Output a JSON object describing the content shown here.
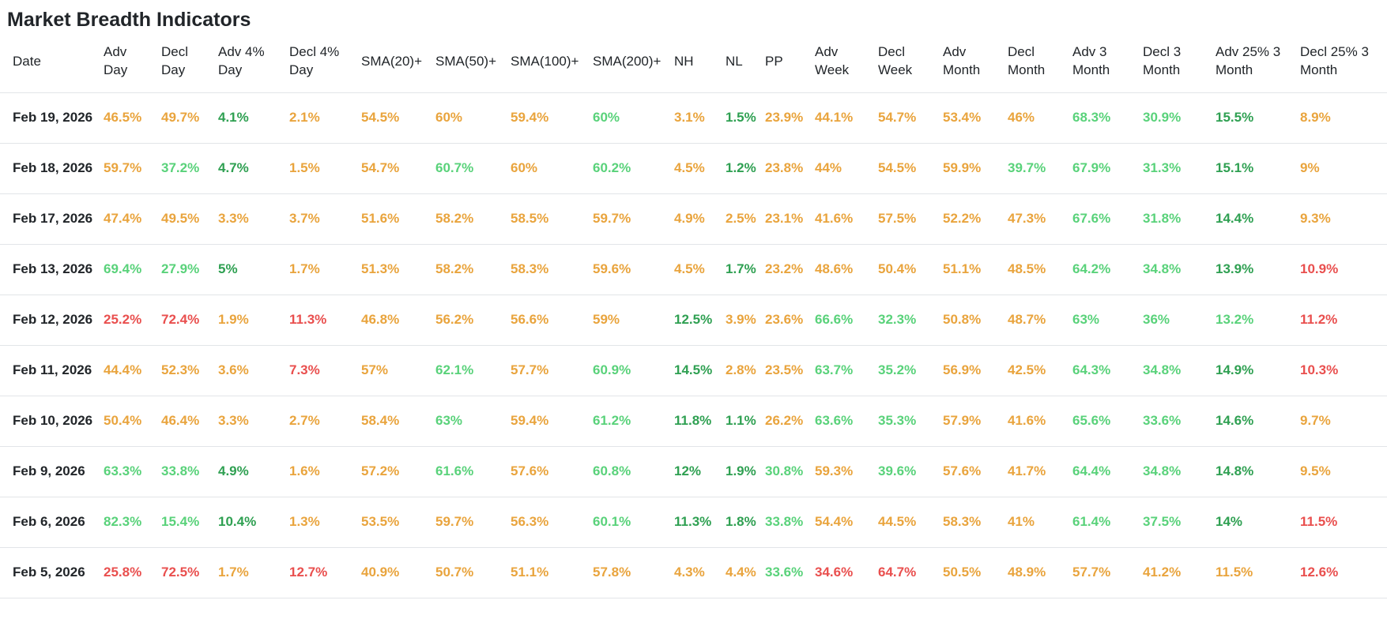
{
  "title": "Market Breadth Indicators",
  "colors": {
    "orange": "#e9a43d",
    "lightgreen": "#59d27a",
    "green": "#2fa052",
    "red": "#e94f4e",
    "text": "#212529",
    "border": "#e2e5e8"
  },
  "table": {
    "columns": [
      "Date",
      "Adv\nDay",
      "Decl\nDay",
      "Adv 4%\nDay",
      "Decl 4%\nDay",
      "SMA(20)+",
      "SMA(50)+",
      "SMA(100)+",
      "SMA(200)+",
      "NH",
      "NL",
      "PP",
      "Adv\nWeek",
      "Decl\nWeek",
      "Adv\nMonth",
      "Decl\nMonth",
      "Adv 3\nMonth",
      "Decl 3\nMonth",
      "Adv 25% 3\nMonth",
      "Decl 25% 3\nMonth"
    ],
    "rows": [
      {
        "date": "Feb 19, 2026",
        "values": [
          [
            "46.5%",
            "o"
          ],
          [
            "49.7%",
            "o"
          ],
          [
            "4.1%",
            "g"
          ],
          [
            "2.1%",
            "o"
          ],
          [
            "54.5%",
            "o"
          ],
          [
            "60%",
            "o"
          ],
          [
            "59.4%",
            "o"
          ],
          [
            "60%",
            "lg"
          ],
          [
            "3.1%",
            "o"
          ],
          [
            "1.5%",
            "g"
          ],
          [
            "23.9%",
            "o"
          ],
          [
            "44.1%",
            "o"
          ],
          [
            "54.7%",
            "o"
          ],
          [
            "53.4%",
            "o"
          ],
          [
            "46%",
            "o"
          ],
          [
            "68.3%",
            "lg"
          ],
          [
            "30.9%",
            "lg"
          ],
          [
            "15.5%",
            "g"
          ],
          [
            "8.9%",
            "o"
          ]
        ]
      },
      {
        "date": "Feb 18, 2026",
        "values": [
          [
            "59.7%",
            "o"
          ],
          [
            "37.2%",
            "lg"
          ],
          [
            "4.7%",
            "g"
          ],
          [
            "1.5%",
            "o"
          ],
          [
            "54.7%",
            "o"
          ],
          [
            "60.7%",
            "lg"
          ],
          [
            "60%",
            "o"
          ],
          [
            "60.2%",
            "lg"
          ],
          [
            "4.5%",
            "o"
          ],
          [
            "1.2%",
            "g"
          ],
          [
            "23.8%",
            "o"
          ],
          [
            "44%",
            "o"
          ],
          [
            "54.5%",
            "o"
          ],
          [
            "59.9%",
            "o"
          ],
          [
            "39.7%",
            "lg"
          ],
          [
            "67.9%",
            "lg"
          ],
          [
            "31.3%",
            "lg"
          ],
          [
            "15.1%",
            "g"
          ],
          [
            "9%",
            "o"
          ]
        ]
      },
      {
        "date": "Feb 17, 2026",
        "values": [
          [
            "47.4%",
            "o"
          ],
          [
            "49.5%",
            "o"
          ],
          [
            "3.3%",
            "o"
          ],
          [
            "3.7%",
            "o"
          ],
          [
            "51.6%",
            "o"
          ],
          [
            "58.2%",
            "o"
          ],
          [
            "58.5%",
            "o"
          ],
          [
            "59.7%",
            "o"
          ],
          [
            "4.9%",
            "o"
          ],
          [
            "2.5%",
            "o"
          ],
          [
            "23.1%",
            "o"
          ],
          [
            "41.6%",
            "o"
          ],
          [
            "57.5%",
            "o"
          ],
          [
            "52.2%",
            "o"
          ],
          [
            "47.3%",
            "o"
          ],
          [
            "67.6%",
            "lg"
          ],
          [
            "31.8%",
            "lg"
          ],
          [
            "14.4%",
            "g"
          ],
          [
            "9.3%",
            "o"
          ]
        ]
      },
      {
        "date": "Feb 13, 2026",
        "values": [
          [
            "69.4%",
            "lg"
          ],
          [
            "27.9%",
            "lg"
          ],
          [
            "5%",
            "g"
          ],
          [
            "1.7%",
            "o"
          ],
          [
            "51.3%",
            "o"
          ],
          [
            "58.2%",
            "o"
          ],
          [
            "58.3%",
            "o"
          ],
          [
            "59.6%",
            "o"
          ],
          [
            "4.5%",
            "o"
          ],
          [
            "1.7%",
            "g"
          ],
          [
            "23.2%",
            "o"
          ],
          [
            "48.6%",
            "o"
          ],
          [
            "50.4%",
            "o"
          ],
          [
            "51.1%",
            "o"
          ],
          [
            "48.5%",
            "o"
          ],
          [
            "64.2%",
            "lg"
          ],
          [
            "34.8%",
            "lg"
          ],
          [
            "13.9%",
            "g"
          ],
          [
            "10.9%",
            "r"
          ]
        ]
      },
      {
        "date": "Feb 12, 2026",
        "values": [
          [
            "25.2%",
            "r"
          ],
          [
            "72.4%",
            "r"
          ],
          [
            "1.9%",
            "o"
          ],
          [
            "11.3%",
            "r"
          ],
          [
            "46.8%",
            "o"
          ],
          [
            "56.2%",
            "o"
          ],
          [
            "56.6%",
            "o"
          ],
          [
            "59%",
            "o"
          ],
          [
            "12.5%",
            "g"
          ],
          [
            "3.9%",
            "o"
          ],
          [
            "23.6%",
            "o"
          ],
          [
            "66.6%",
            "lg"
          ],
          [
            "32.3%",
            "lg"
          ],
          [
            "50.8%",
            "o"
          ],
          [
            "48.7%",
            "o"
          ],
          [
            "63%",
            "lg"
          ],
          [
            "36%",
            "lg"
          ],
          [
            "13.2%",
            "lg"
          ],
          [
            "11.2%",
            "r"
          ]
        ]
      },
      {
        "date": "Feb 11, 2026",
        "values": [
          [
            "44.4%",
            "o"
          ],
          [
            "52.3%",
            "o"
          ],
          [
            "3.6%",
            "o"
          ],
          [
            "7.3%",
            "r"
          ],
          [
            "57%",
            "o"
          ],
          [
            "62.1%",
            "lg"
          ],
          [
            "57.7%",
            "o"
          ],
          [
            "60.9%",
            "lg"
          ],
          [
            "14.5%",
            "g"
          ],
          [
            "2.8%",
            "o"
          ],
          [
            "23.5%",
            "o"
          ],
          [
            "63.7%",
            "lg"
          ],
          [
            "35.2%",
            "lg"
          ],
          [
            "56.9%",
            "o"
          ],
          [
            "42.5%",
            "o"
          ],
          [
            "64.3%",
            "lg"
          ],
          [
            "34.8%",
            "lg"
          ],
          [
            "14.9%",
            "g"
          ],
          [
            "10.3%",
            "r"
          ]
        ]
      },
      {
        "date": "Feb 10, 2026",
        "values": [
          [
            "50.4%",
            "o"
          ],
          [
            "46.4%",
            "o"
          ],
          [
            "3.3%",
            "o"
          ],
          [
            "2.7%",
            "o"
          ],
          [
            "58.4%",
            "o"
          ],
          [
            "63%",
            "lg"
          ],
          [
            "59.4%",
            "o"
          ],
          [
            "61.2%",
            "lg"
          ],
          [
            "11.8%",
            "g"
          ],
          [
            "1.1%",
            "g"
          ],
          [
            "26.2%",
            "o"
          ],
          [
            "63.6%",
            "lg"
          ],
          [
            "35.3%",
            "lg"
          ],
          [
            "57.9%",
            "o"
          ],
          [
            "41.6%",
            "o"
          ],
          [
            "65.6%",
            "lg"
          ],
          [
            "33.6%",
            "lg"
          ],
          [
            "14.6%",
            "g"
          ],
          [
            "9.7%",
            "o"
          ]
        ]
      },
      {
        "date": "Feb 9, 2026",
        "values": [
          [
            "63.3%",
            "lg"
          ],
          [
            "33.8%",
            "lg"
          ],
          [
            "4.9%",
            "g"
          ],
          [
            "1.6%",
            "o"
          ],
          [
            "57.2%",
            "o"
          ],
          [
            "61.6%",
            "lg"
          ],
          [
            "57.6%",
            "o"
          ],
          [
            "60.8%",
            "lg"
          ],
          [
            "12%",
            "g"
          ],
          [
            "1.9%",
            "g"
          ],
          [
            "30.8%",
            "lg"
          ],
          [
            "59.3%",
            "o"
          ],
          [
            "39.6%",
            "lg"
          ],
          [
            "57.6%",
            "o"
          ],
          [
            "41.7%",
            "o"
          ],
          [
            "64.4%",
            "lg"
          ],
          [
            "34.8%",
            "lg"
          ],
          [
            "14.8%",
            "g"
          ],
          [
            "9.5%",
            "o"
          ]
        ]
      },
      {
        "date": "Feb 6, 2026",
        "values": [
          [
            "82.3%",
            "lg"
          ],
          [
            "15.4%",
            "lg"
          ],
          [
            "10.4%",
            "g"
          ],
          [
            "1.3%",
            "o"
          ],
          [
            "53.5%",
            "o"
          ],
          [
            "59.7%",
            "o"
          ],
          [
            "56.3%",
            "o"
          ],
          [
            "60.1%",
            "lg"
          ],
          [
            "11.3%",
            "g"
          ],
          [
            "1.8%",
            "g"
          ],
          [
            "33.8%",
            "lg"
          ],
          [
            "54.4%",
            "o"
          ],
          [
            "44.5%",
            "o"
          ],
          [
            "58.3%",
            "o"
          ],
          [
            "41%",
            "o"
          ],
          [
            "61.4%",
            "lg"
          ],
          [
            "37.5%",
            "lg"
          ],
          [
            "14%",
            "g"
          ],
          [
            "11.5%",
            "r"
          ]
        ]
      },
      {
        "date": "Feb 5, 2026",
        "values": [
          [
            "25.8%",
            "r"
          ],
          [
            "72.5%",
            "r"
          ],
          [
            "1.7%",
            "o"
          ],
          [
            "12.7%",
            "r"
          ],
          [
            "40.9%",
            "o"
          ],
          [
            "50.7%",
            "o"
          ],
          [
            "51.1%",
            "o"
          ],
          [
            "57.8%",
            "o"
          ],
          [
            "4.3%",
            "o"
          ],
          [
            "4.4%",
            "o"
          ],
          [
            "33.6%",
            "lg"
          ],
          [
            "34.6%",
            "r"
          ],
          [
            "64.7%",
            "r"
          ],
          [
            "50.5%",
            "o"
          ],
          [
            "48.9%",
            "o"
          ],
          [
            "57.7%",
            "o"
          ],
          [
            "41.2%",
            "o"
          ],
          [
            "11.5%",
            "o"
          ],
          [
            "12.6%",
            "r"
          ]
        ]
      }
    ]
  }
}
